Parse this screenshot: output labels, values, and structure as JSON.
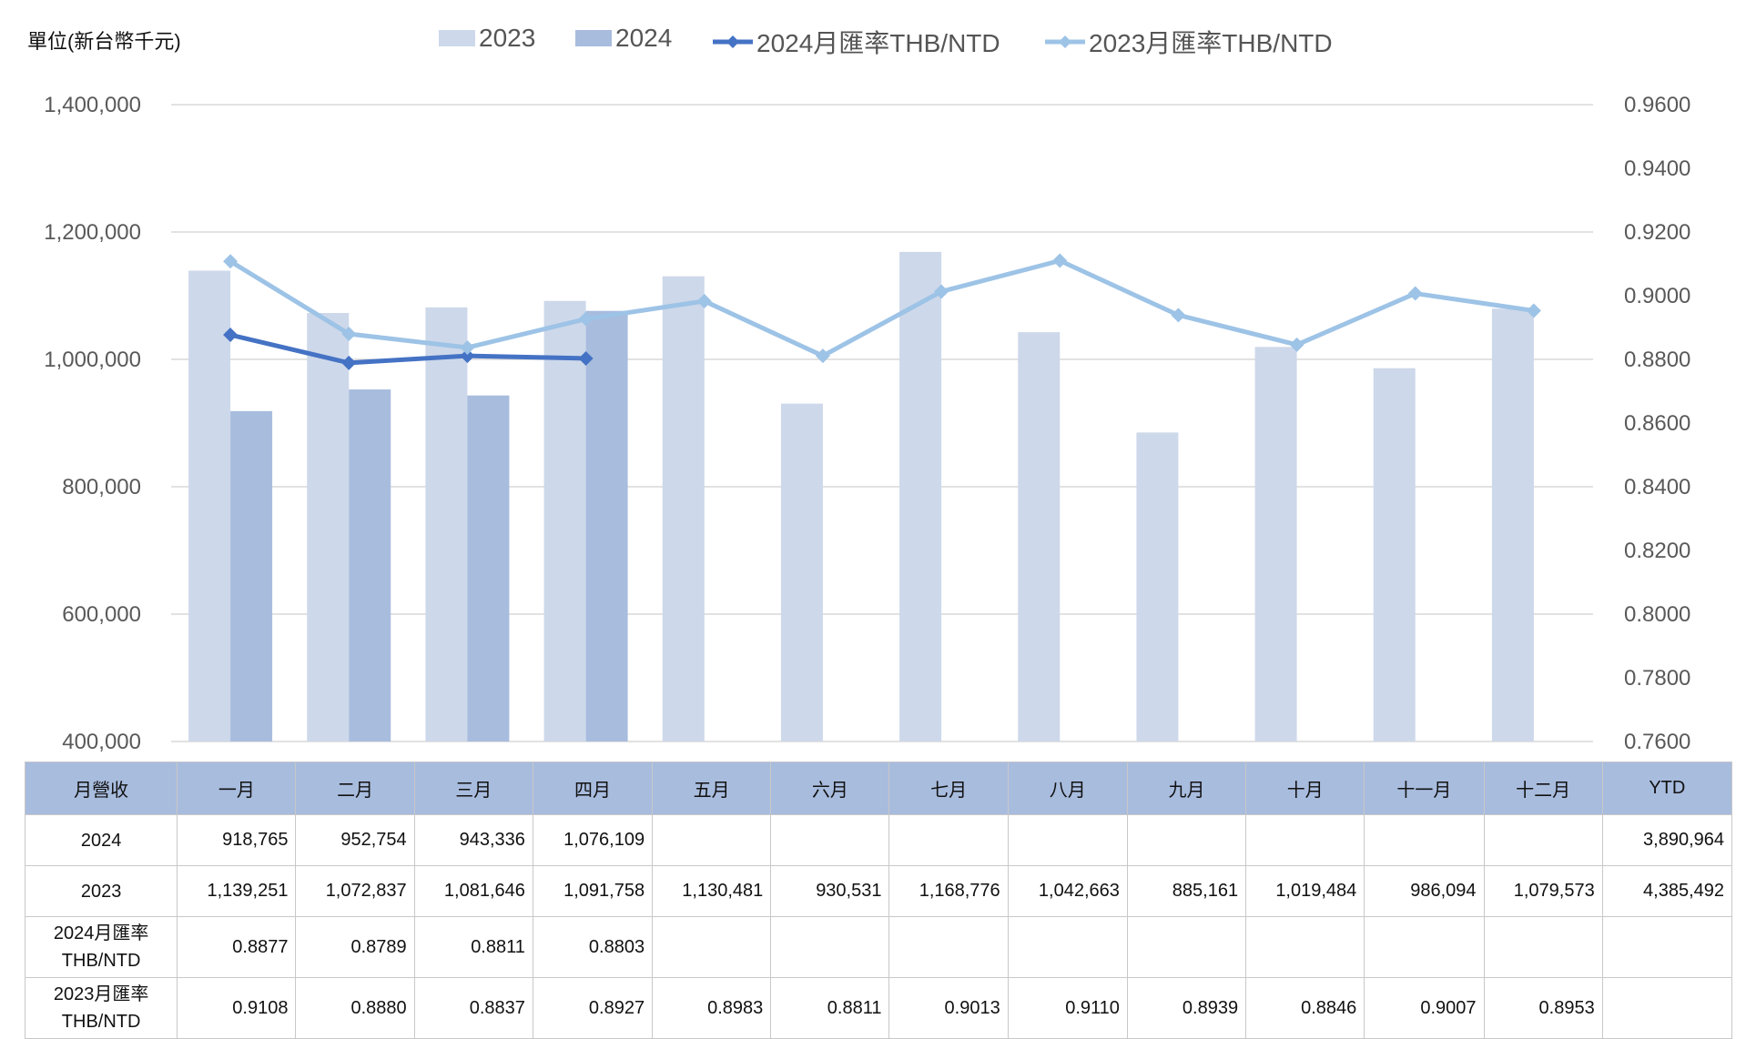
{
  "unit_label": "單位(新台幣千元)",
  "legend": [
    {
      "label": "2023",
      "kind": "bar",
      "color": "#cdd8ea"
    },
    {
      "label": "2024",
      "kind": "bar",
      "color": "#a8bcde"
    },
    {
      "label": "2024月匯率THB/NTD",
      "kind": "line",
      "color": "#4472c4"
    },
    {
      "label": "2023月匯率THB/NTD",
      "kind": "line",
      "color": "#9dc3e6"
    }
  ],
  "chart_data": {
    "type": "bar",
    "categories": [
      "一月",
      "二月",
      "三月",
      "四月",
      "五月",
      "六月",
      "七月",
      "八月",
      "九月",
      "十月",
      "十一月",
      "十二月"
    ],
    "series": [
      {
        "name": "2023",
        "kind": "bar",
        "axis": "left",
        "color": "#cdd8ea",
        "values": [
          1139251,
          1072837,
          1081646,
          1091758,
          1130481,
          930531,
          1168776,
          1042663,
          885161,
          1019484,
          986094,
          1079573
        ]
      },
      {
        "name": "2024",
        "kind": "bar",
        "axis": "left",
        "color": "#a8bcde",
        "values": [
          918765,
          952754,
          943336,
          1076109,
          null,
          null,
          null,
          null,
          null,
          null,
          null,
          null
        ]
      },
      {
        "name": "2024月匯率THB/NTD",
        "kind": "line",
        "axis": "right",
        "color": "#4472c4",
        "values": [
          0.8877,
          0.8789,
          0.8811,
          0.8803,
          null,
          null,
          null,
          null,
          null,
          null,
          null,
          null
        ]
      },
      {
        "name": "2023月匯率THB/NTD",
        "kind": "line",
        "axis": "right",
        "color": "#9dc3e6",
        "values": [
          0.9108,
          0.888,
          0.8837,
          0.8927,
          0.8983,
          0.8811,
          0.9013,
          0.911,
          0.8939,
          0.8846,
          0.9007,
          0.8953
        ]
      }
    ],
    "y_left": {
      "min": 400000,
      "max": 1400000,
      "ticks": [
        "400,000",
        "600,000",
        "800,000",
        "1,000,000",
        "1,200,000",
        "1,400,000"
      ]
    },
    "y_right": {
      "min": 0.76,
      "max": 0.96,
      "ticks": [
        "0.7600",
        "0.7800",
        "0.8000",
        "0.8200",
        "0.8400",
        "0.8600",
        "0.8800",
        "0.9000",
        "0.9200",
        "0.9400",
        "0.9600"
      ]
    },
    "grid": true,
    "legend_position": "top"
  },
  "table": {
    "header": [
      "月營收",
      "一月",
      "二月",
      "三月",
      "四月",
      "五月",
      "六月",
      "七月",
      "八月",
      "九月",
      "十月",
      "十一月",
      "十二月",
      "YTD"
    ],
    "rows": [
      {
        "label_lines": [
          "2024"
        ],
        "cells": [
          "918,765",
          "952,754",
          "943,336",
          "1,076,109",
          "",
          "",
          "",
          "",
          "",
          "",
          "",
          "",
          "3,890,964"
        ]
      },
      {
        "label_lines": [
          "2023"
        ],
        "cells": [
          "1,139,251",
          "1,072,837",
          "1,081,646",
          "1,091,758",
          "1,130,481",
          "930,531",
          "1,168,776",
          "1,042,663",
          "885,161",
          "1,019,484",
          "986,094",
          "1,079,573",
          "4,385,492"
        ]
      },
      {
        "label_lines": [
          "2024月匯率",
          "THB/NTD"
        ],
        "cells": [
          "0.8877",
          "0.8789",
          "0.8811",
          "0.8803",
          "",
          "",
          "",
          "",
          "",
          "",
          "",
          "",
          ""
        ]
      },
      {
        "label_lines": [
          "2023月匯率",
          "THB/NTD"
        ],
        "cells": [
          "0.9108",
          "0.8880",
          "0.8837",
          "0.8927",
          "0.8983",
          "0.8811",
          "0.9013",
          "0.9110",
          "0.8939",
          "0.8846",
          "0.9007",
          "0.8953",
          ""
        ]
      }
    ]
  }
}
